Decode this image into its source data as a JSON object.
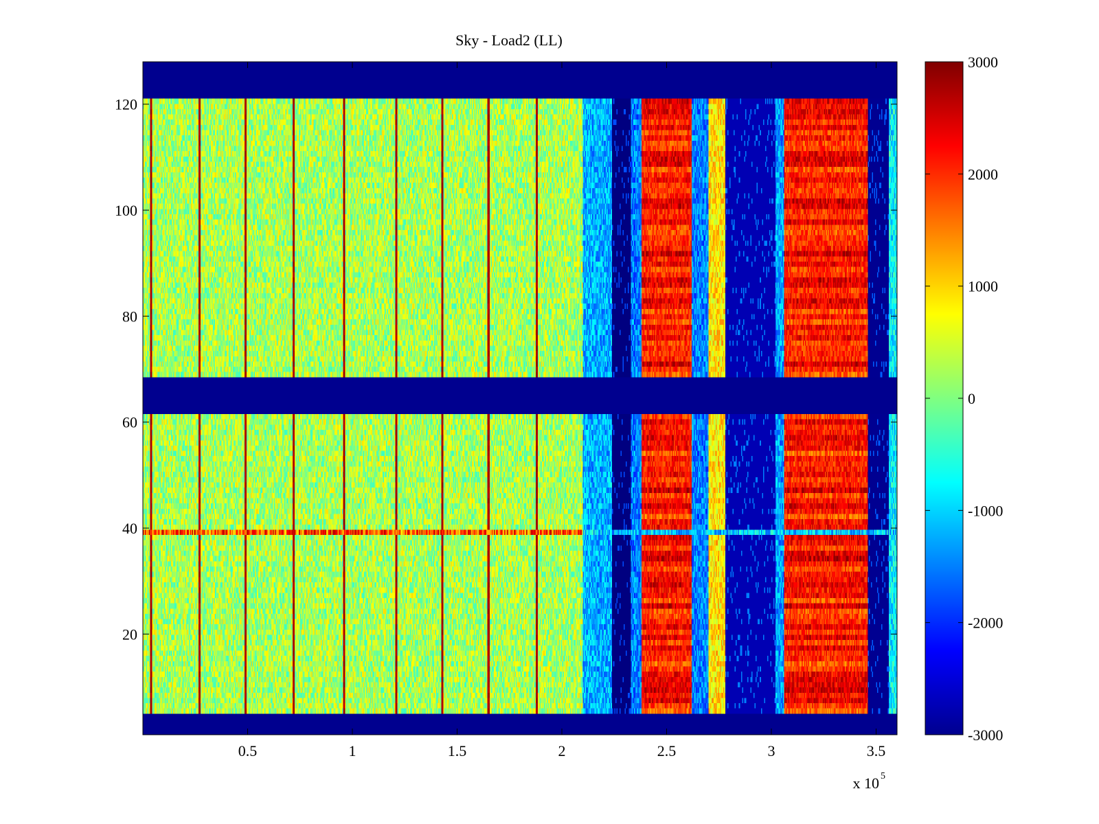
{
  "chart_data": {
    "type": "heatmap",
    "title": "Sky - Load2 (LL)",
    "xlabel": "",
    "ylabel": "",
    "x_multiplier_label": "x 10",
    "x_multiplier_exponent": "5",
    "xlim": [
      0,
      3.6
    ],
    "ylim": [
      1,
      128
    ],
    "xticks": [
      0.5,
      1,
      1.5,
      2,
      2.5,
      3,
      3.5
    ],
    "xtick_labels": [
      "0.5",
      "1",
      "1.5",
      "2",
      "2.5",
      "3",
      "3.5"
    ],
    "yticks": [
      20,
      40,
      60,
      80,
      100,
      120
    ],
    "ytick_labels": [
      "20",
      "40",
      "60",
      "80",
      "100",
      "120"
    ],
    "colormap": "jet",
    "clim": [
      -3000,
      3000
    ],
    "colorbar_ticks": [
      3000,
      2000,
      1000,
      0,
      -1000,
      -2000,
      -3000
    ],
    "colorbar_labels": [
      "3000",
      "2000",
      "1000",
      "0",
      "-1000",
      "-2000",
      "-3000"
    ],
    "masked_rows": [
      [
        1,
        4
      ],
      [
        62,
        68
      ],
      [
        122,
        128
      ]
    ],
    "segments": [
      {
        "x": [
          0.0,
          2.1
        ],
        "mean": 250,
        "description": "green/yellow noise"
      },
      {
        "x": [
          2.1,
          2.24
        ],
        "mean": -1200
      },
      {
        "x": [
          2.24,
          2.33
        ],
        "mean": -3000
      },
      {
        "x": [
          2.33,
          2.38
        ],
        "mean": -1500
      },
      {
        "x": [
          2.38,
          2.62
        ],
        "mean": 2100
      },
      {
        "x": [
          2.62,
          2.7
        ],
        "mean": -1500
      },
      {
        "x": [
          2.7,
          2.78
        ],
        "mean": 900
      },
      {
        "x": [
          2.78,
          3.02
        ],
        "mean": -2700
      },
      {
        "x": [
          3.02,
          3.06
        ],
        "mean": -1300
      },
      {
        "x": [
          3.06,
          3.46
        ],
        "mean": 2100
      },
      {
        "x": [
          3.46,
          3.56
        ],
        "mean": -2900
      },
      {
        "x": [
          3.56,
          3.6
        ],
        "mean": -800
      }
    ],
    "spike_columns_x": [
      0.04,
      0.27,
      0.49,
      0.72,
      0.96,
      1.21,
      1.43,
      1.65,
      1.88
    ],
    "anomalous_row": {
      "y": 39,
      "x": [
        0.0,
        2.1
      ]
    },
    "colors": {
      "masked": "#00008f",
      "background": "#ffffff"
    }
  }
}
